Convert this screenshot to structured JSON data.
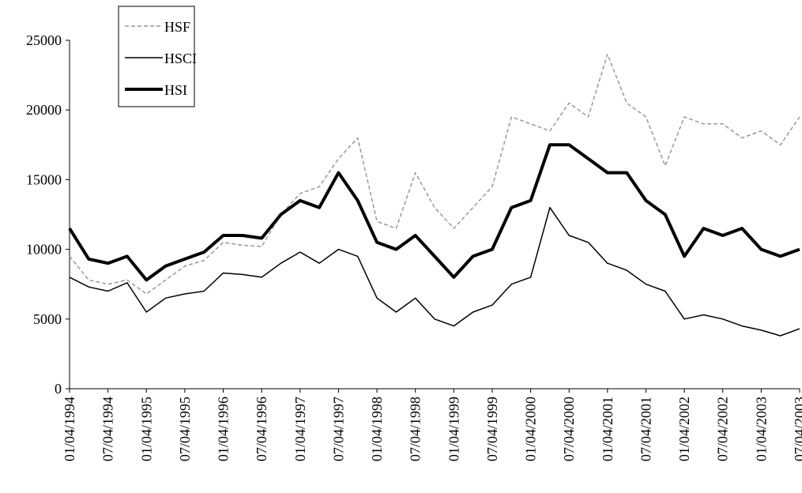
{
  "chart_data": {
    "type": "line",
    "x": [
      1994,
      1994.25,
      1994.5,
      1994.75,
      1995,
      1995.25,
      1995.5,
      1995.75,
      1996,
      1996.25,
      1996.5,
      1996.75,
      1997,
      1997.25,
      1997.5,
      1997.75,
      1998,
      1998.25,
      1998.5,
      1998.75,
      1999,
      1999.25,
      1999.5,
      1999.75,
      2000,
      2000.25,
      2000.5,
      2000.75,
      2001,
      2001.25,
      2001.5,
      2001.75,
      2002,
      2002.25,
      2002.5,
      2002.75,
      2003,
      2003.25,
      2003.5
    ],
    "series": [
      {
        "name": "HSF",
        "color": "#999999",
        "dashed": true,
        "width": 1.5,
        "values": [
          9500,
          7800,
          7500,
          7800,
          6800,
          7800,
          8800,
          9200,
          10500,
          10300,
          10200,
          12500,
          14000,
          14500,
          16500,
          18000,
          12000,
          11500,
          15500,
          13000,
          11500,
          13000,
          14500,
          19500,
          19000,
          18500,
          20500,
          19500,
          24000,
          20500,
          19500,
          16000,
          19500,
          19000,
          19000,
          18000,
          18500,
          17500,
          19500
        ]
      },
      {
        "name": "HSCI",
        "color": "#000000",
        "dashed": false,
        "width": 1.5,
        "values": [
          8000,
          7300,
          7000,
          7600,
          5500,
          6500,
          6800,
          7000,
          8300,
          8200,
          8000,
          9000,
          9800,
          9000,
          10000,
          9500,
          6500,
          5500,
          6500,
          5000,
          4500,
          5500,
          6000,
          7500,
          8000,
          13000,
          11000,
          10500,
          9000,
          8500,
          7500,
          7000,
          5000,
          5300,
          5000,
          4500,
          4200,
          3800,
          4300
        ]
      },
      {
        "name": "HSI",
        "color": "#000000",
        "dashed": false,
        "width": 4,
        "values": [
          11500,
          9300,
          9000,
          9500,
          7800,
          8800,
          9300,
          9800,
          11000,
          11000,
          10800,
          12500,
          13500,
          13000,
          15500,
          13500,
          10500,
          10000,
          11000,
          9500,
          8000,
          9500,
          10000,
          13000,
          13500,
          17500,
          17500,
          16500,
          15500,
          15500,
          13500,
          12500,
          9500,
          11500,
          11000,
          11500,
          10000,
          9500,
          10000
        ]
      }
    ],
    "xlim": [
      1994,
      2003.5
    ],
    "xticks": [
      {
        "value": 1994,
        "label": "01/04/1994"
      },
      {
        "value": 1994.5,
        "label": "07/04/1994"
      },
      {
        "value": 1995,
        "label": "01/04/1995"
      },
      {
        "value": 1995.5,
        "label": "07/04/1995"
      },
      {
        "value": 1996,
        "label": "01/04/1996"
      },
      {
        "value": 1996.5,
        "label": "07/04/1996"
      },
      {
        "value": 1997,
        "label": "01/04/1997"
      },
      {
        "value": 1997.5,
        "label": "07/04/1997"
      },
      {
        "value": 1998,
        "label": "01/04/1998"
      },
      {
        "value": 1998.5,
        "label": "07/04/1998"
      },
      {
        "value": 1999,
        "label": "01/04/1999"
      },
      {
        "value": 1999.5,
        "label": "07/04/1999"
      },
      {
        "value": 2000,
        "label": "01/04/2000"
      },
      {
        "value": 2000.5,
        "label": "07/04/2000"
      },
      {
        "value": 2001,
        "label": "01/04/2001"
      },
      {
        "value": 2001.5,
        "label": "07/04/2001"
      },
      {
        "value": 2002,
        "label": "01/04/2002"
      },
      {
        "value": 2002.5,
        "label": "07/04/2002"
      },
      {
        "value": 2003,
        "label": "01/04/2003"
      },
      {
        "value": 2003.5,
        "label": "07/04/2003"
      }
    ],
    "ylim": [
      0,
      25000
    ],
    "yticks": [
      0,
      5000,
      10000,
      15000,
      20000,
      25000
    ],
    "grid": false,
    "legend": "top-left"
  }
}
